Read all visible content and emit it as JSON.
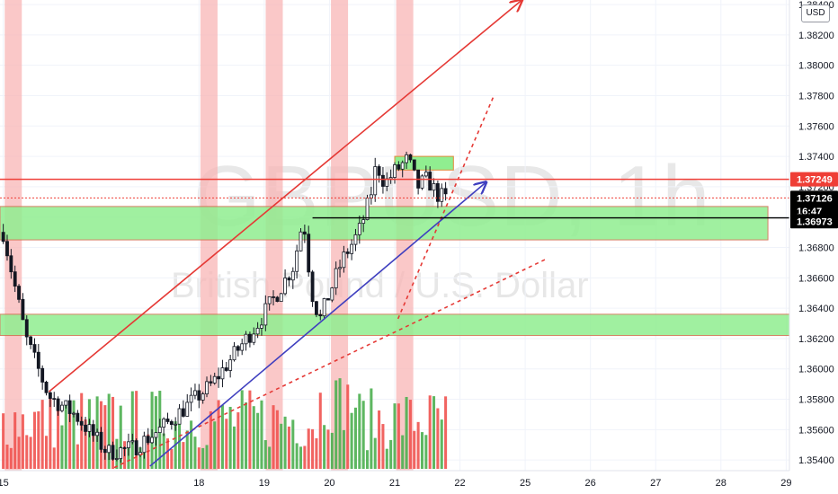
{
  "watermark": {
    "symbol": "GBPUSD, 1h",
    "description": "British Pound / U.S. Dollar"
  },
  "currency_button": "USD",
  "colors": {
    "up": "#26a69a",
    "down": "#ef5350",
    "volume_up": "#4caf50",
    "volume_down": "#ef5350",
    "session_band": "#f8b5b5",
    "support_zone": "#90ee90",
    "channel_red": "#e53935",
    "channel_blue": "#3f3fbf",
    "last_price_badge": "#000000",
    "level_badge": "#ef3e36"
  },
  "chart_data": {
    "type": "candlestick",
    "symbol": "GBPUSD",
    "timeframe": "1h",
    "y_axis": {
      "ticks": [
        "1.35400",
        "1.35600",
        "1.35800",
        "1.36000",
        "1.36200",
        "1.36400",
        "1.36600",
        "1.36800",
        "1.37000",
        "1.37200",
        "1.37400",
        "1.37600",
        "1.37800",
        "1.38000",
        "1.38200",
        "1.38400"
      ],
      "range": [
        1.3533,
        1.3843
      ]
    },
    "x_axis": {
      "ticks": [
        {
          "label": "15",
          "day": 15.0
        },
        {
          "label": "18",
          "day": 18.0
        },
        {
          "label": "19",
          "day": 19.0
        },
        {
          "label": "20",
          "day": 20.0
        },
        {
          "label": "21",
          "day": 21.0
        },
        {
          "label": "22",
          "day": 22.0
        },
        {
          "label": "25",
          "day": 23.0
        },
        {
          "label": "26",
          "day": 24.0
        },
        {
          "label": "27",
          "day": 25.0
        },
        {
          "label": "28",
          "day": 26.0
        },
        {
          "label": "29",
          "day": 27.0
        }
      ],
      "range": [
        14.95,
        27.05
      ]
    },
    "price_labels": [
      {
        "label": "1.37249",
        "price": 1.37249,
        "style": "level"
      },
      {
        "label": "1.37126",
        "price": 1.37126,
        "style": "last"
      },
      {
        "label": "16:47",
        "price": 1.3704,
        "style": "countdown"
      },
      {
        "label": "1.36973",
        "price": 1.36973,
        "style": "last"
      }
    ],
    "horizontal_levels": [
      {
        "price": 1.37249,
        "color": "#ef3e36",
        "style": "solid"
      },
      {
        "price": 1.37126,
        "color": "#ef3e36",
        "style": "dotted"
      },
      {
        "price": 1.36995,
        "color": "#000000",
        "style": "solid",
        "from_day": 19.74
      }
    ],
    "zones": [
      {
        "name": "support-zone-upper",
        "price_top": 1.3707,
        "price_bottom": 1.3685,
        "day_from": 14.95,
        "day_to": 26.72
      },
      {
        "name": "support-zone-lower",
        "price_top": 1.3636,
        "price_bottom": 1.3622,
        "day_from": 14.95,
        "day_to": 27.05
      },
      {
        "name": "resistance-box",
        "price_top": 1.374,
        "price_bottom": 1.3731,
        "day_from": 21.0,
        "day_to": 21.9
      }
    ],
    "session_days": [
      15.05,
      18.05,
      19.05,
      20.05,
      21.05
    ],
    "trendlines": [
      {
        "name": "channel-top",
        "color": "#e53935",
        "style": "solid",
        "from": [
          15.7,
          1.3585
        ],
        "to": [
          22.95,
          1.3843
        ],
        "arrow": true
      },
      {
        "name": "channel-mid",
        "color": "#e53935",
        "style": "dashed",
        "from": [
          21.05,
          1.3633
        ],
        "to": [
          22.52,
          1.378
        ],
        "arrow": false
      },
      {
        "name": "channel-bottom",
        "color": "#e53935",
        "style": "dashed",
        "from": [
          16.7,
          1.3535
        ],
        "to": [
          23.35,
          1.3673
        ],
        "arrow": false
      },
      {
        "name": "support-trend",
        "color": "#3f3fbf",
        "style": "solid",
        "from": [
          17.25,
          1.3536
        ],
        "to": [
          22.4,
          1.3723
        ],
        "arrow": true
      }
    ],
    "volume_max": 1000
  }
}
